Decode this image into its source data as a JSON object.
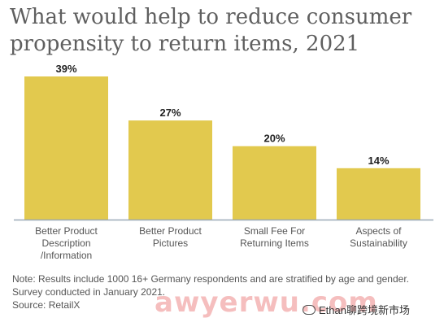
{
  "header": {
    "title_line1": "What would help to reduce consumer",
    "title_line2": "propensity to return items, 2021"
  },
  "chart_data": {
    "type": "bar",
    "categories": [
      [
        "Better Product",
        "Description",
        "/Information"
      ],
      [
        "Better Product",
        "Pictures"
      ],
      [
        "Small Fee For",
        "Returning Items"
      ],
      [
        "Aspects of",
        "Sustainability"
      ]
    ],
    "values": [
      39,
      27,
      20,
      14
    ],
    "data_labels": [
      "39%",
      "27%",
      "20%",
      "14%"
    ],
    "ylim": [
      0,
      40
    ],
    "grid": false,
    "bar_color": "#e2c94e",
    "axis_color": "#9aa9b8"
  },
  "footer": {
    "note_line1": "Note: Results include 1000 16+ Germany respondents and are stratified by age and gender.",
    "note_line2": "Survey conducted in January 2021.",
    "source": "Source: RetailX"
  },
  "overlay": {
    "watermark": "awyerwu.com",
    "wechat_label": "Ethan聊跨境新市场",
    "wechat_icon": "wechat-icon"
  }
}
